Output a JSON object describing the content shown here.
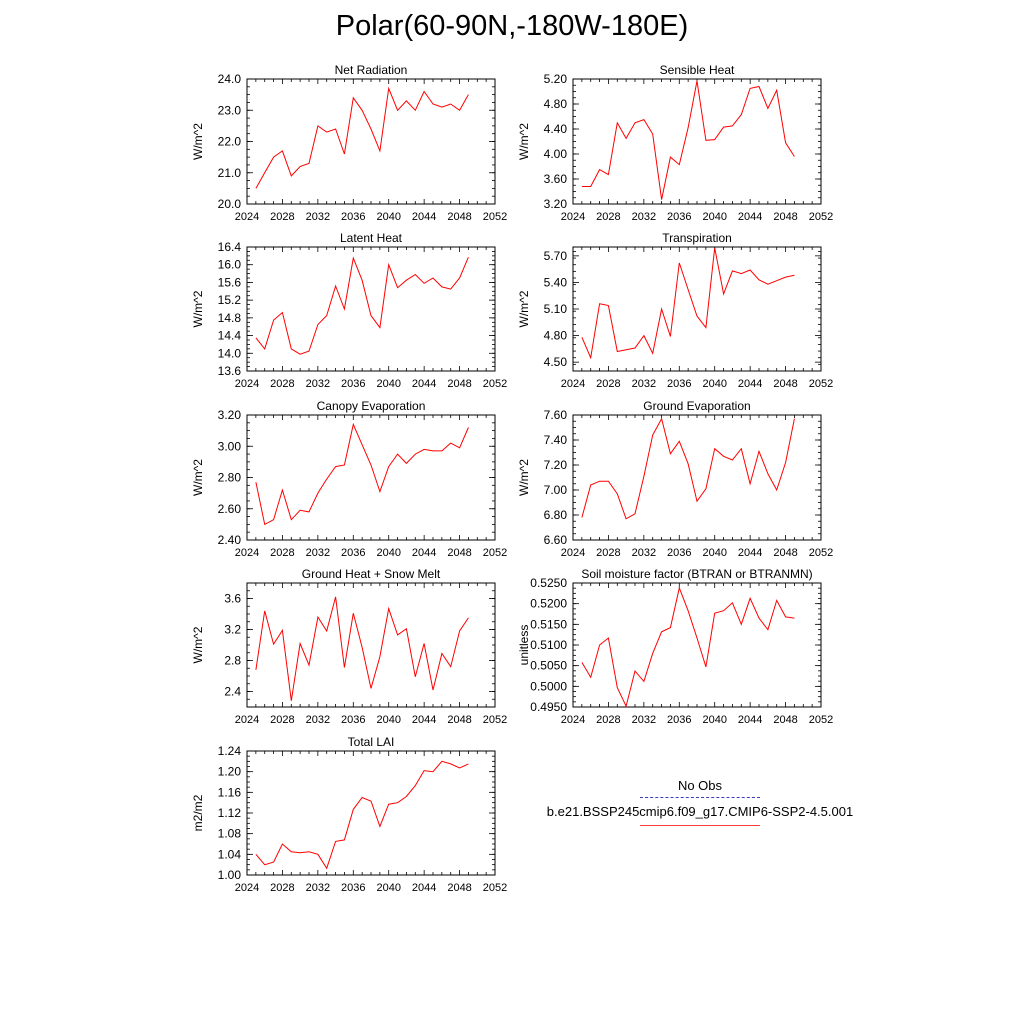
{
  "title": "Polar(60-90N,-180W-180E)",
  "colors": {
    "model_line": "#ff0000",
    "obs_line": "#3b3bbf",
    "axis": "#000000"
  },
  "legend": {
    "obs_label": "No Obs",
    "model_label": "b.e21.BSSP245cmip6.f09_g17.CMIP6-SSP2-4.5.001"
  },
  "chart_data": [
    {
      "type": "line",
      "title": "Net Radiation",
      "ylabel": "W/m^2",
      "xlim": [
        2024,
        2052
      ],
      "xticks": [
        2024,
        2028,
        2032,
        2036,
        2040,
        2044,
        2048,
        2052
      ],
      "ylim": [
        20.0,
        24.0
      ],
      "yticks": [
        "20.0",
        "21.0",
        "22.0",
        "23.0",
        "24.0"
      ],
      "x": [
        2025,
        2026,
        2027,
        2028,
        2029,
        2030,
        2031,
        2032,
        2033,
        2034,
        2035,
        2036,
        2037,
        2038,
        2039,
        2040,
        2041,
        2042,
        2043,
        2044,
        2045,
        2046,
        2047,
        2048,
        2049
      ],
      "series": [
        {
          "values": [
            20.5,
            21.0,
            21.5,
            21.7,
            20.9,
            21.2,
            21.3,
            22.5,
            22.3,
            22.4,
            21.6,
            23.4,
            23.0,
            22.4,
            21.7,
            23.7,
            23.0,
            23.3,
            23.0,
            23.6,
            23.2,
            23.1,
            23.2,
            23.0,
            23.5
          ]
        }
      ]
    },
    {
      "type": "line",
      "title": "Sensible Heat",
      "ylabel": "W/m^2",
      "xlim": [
        2024,
        2052
      ],
      "xticks": [
        2024,
        2028,
        2032,
        2036,
        2040,
        2044,
        2048,
        2052
      ],
      "ylim": [
        3.2,
        5.2
      ],
      "yticks": [
        "3.20",
        "3.60",
        "4.00",
        "4.40",
        "4.80",
        "5.20"
      ],
      "x": [
        2025,
        2026,
        2027,
        2028,
        2029,
        2030,
        2031,
        2032,
        2033,
        2034,
        2035,
        2036,
        2037,
        2038,
        2039,
        2040,
        2041,
        2042,
        2043,
        2044,
        2045,
        2046,
        2047,
        2048,
        2049
      ],
      "series": [
        {
          "values": [
            3.48,
            3.48,
            3.75,
            3.67,
            4.5,
            4.25,
            4.5,
            4.55,
            4.32,
            3.27,
            3.95,
            3.83,
            4.42,
            5.17,
            4.22,
            4.23,
            4.43,
            4.45,
            4.63,
            5.05,
            5.08,
            4.73,
            5.02,
            4.18,
            3.96
          ]
        }
      ]
    },
    {
      "type": "line",
      "title": "Latent Heat",
      "ylabel": "W/m^2",
      "xlim": [
        2024,
        2052
      ],
      "xticks": [
        2024,
        2028,
        2032,
        2036,
        2040,
        2044,
        2048,
        2052
      ],
      "ylim": [
        13.6,
        16.4
      ],
      "yticks": [
        "13.6",
        "14.0",
        "14.4",
        "14.8",
        "15.2",
        "15.6",
        "16.0",
        "16.4"
      ],
      "x": [
        2025,
        2026,
        2027,
        2028,
        2029,
        2030,
        2031,
        2032,
        2033,
        2034,
        2035,
        2036,
        2037,
        2038,
        2039,
        2040,
        2041,
        2042,
        2043,
        2044,
        2045,
        2046,
        2047,
        2048,
        2049
      ],
      "series": [
        {
          "values": [
            14.35,
            14.1,
            14.75,
            14.92,
            14.1,
            13.98,
            14.05,
            14.65,
            14.85,
            15.52,
            15.0,
            16.15,
            15.65,
            14.85,
            14.58,
            16.0,
            15.48,
            15.65,
            15.78,
            15.58,
            15.7,
            15.5,
            15.45,
            15.7,
            16.17
          ]
        }
      ]
    },
    {
      "type": "line",
      "title": "Transpiration",
      "ylabel": "W/m^2",
      "xlim": [
        2024,
        2052
      ],
      "xticks": [
        2024,
        2028,
        2032,
        2036,
        2040,
        2044,
        2048,
        2052
      ],
      "ylim": [
        4.4,
        5.8
      ],
      "yticks": [
        "4.50",
        "4.80",
        "5.10",
        "5.40",
        "5.70"
      ],
      "x": [
        2025,
        2026,
        2027,
        2028,
        2029,
        2030,
        2031,
        2032,
        2033,
        2034,
        2035,
        2036,
        2037,
        2038,
        2039,
        2040,
        2041,
        2042,
        2043,
        2044,
        2045,
        2046,
        2047,
        2048,
        2049
      ],
      "series": [
        {
          "values": [
            4.78,
            4.55,
            5.16,
            5.14,
            4.62,
            4.64,
            4.66,
            4.8,
            4.6,
            5.1,
            4.79,
            5.62,
            5.32,
            5.02,
            4.89,
            5.79,
            5.27,
            5.53,
            5.5,
            5.54,
            5.43,
            5.38,
            5.42,
            5.46,
            5.48
          ]
        }
      ]
    },
    {
      "type": "line",
      "title": "Canopy Evaporation",
      "ylabel": "W/m^2",
      "xlim": [
        2024,
        2052
      ],
      "xticks": [
        2024,
        2028,
        2032,
        2036,
        2040,
        2044,
        2048,
        2052
      ],
      "ylim": [
        2.4,
        3.2
      ],
      "yticks": [
        "2.40",
        "2.60",
        "2.80",
        "3.00",
        "3.20"
      ],
      "x": [
        2025,
        2026,
        2027,
        2028,
        2029,
        2030,
        2031,
        2032,
        2033,
        2034,
        2035,
        2036,
        2037,
        2038,
        2039,
        2040,
        2041,
        2042,
        2043,
        2044,
        2045,
        2046,
        2047,
        2048,
        2049
      ],
      "series": [
        {
          "values": [
            2.77,
            2.5,
            2.53,
            2.72,
            2.53,
            2.59,
            2.58,
            2.7,
            2.79,
            2.87,
            2.88,
            3.14,
            3.01,
            2.88,
            2.71,
            2.87,
            2.95,
            2.89,
            2.95,
            2.98,
            2.97,
            2.97,
            3.02,
            2.99,
            3.12
          ]
        }
      ]
    },
    {
      "type": "line",
      "title": "Ground Evaporation",
      "ylabel": "W/m^2",
      "xlim": [
        2024,
        2052
      ],
      "xticks": [
        2024,
        2028,
        2032,
        2036,
        2040,
        2044,
        2048,
        2052
      ],
      "ylim": [
        6.6,
        7.6
      ],
      "yticks": [
        "6.60",
        "6.80",
        "7.00",
        "7.20",
        "7.40",
        "7.60"
      ],
      "x": [
        2025,
        2026,
        2027,
        2028,
        2029,
        2030,
        2031,
        2032,
        2033,
        2034,
        2035,
        2036,
        2037,
        2038,
        2039,
        2040,
        2041,
        2042,
        2043,
        2044,
        2045,
        2046,
        2047,
        2048,
        2049
      ],
      "series": [
        {
          "values": [
            6.78,
            7.04,
            7.07,
            7.07,
            6.97,
            6.77,
            6.81,
            7.11,
            7.44,
            7.57,
            7.29,
            7.39,
            7.21,
            6.91,
            7.01,
            7.33,
            7.27,
            7.24,
            7.33,
            7.05,
            7.31,
            7.13,
            7.0,
            7.22,
            7.57
          ]
        }
      ]
    },
    {
      "type": "line",
      "title": "Ground Heat + Snow Melt",
      "ylabel": "W/m^2",
      "xlim": [
        2024,
        2052
      ],
      "xticks": [
        2024,
        2028,
        2032,
        2036,
        2040,
        2044,
        2048,
        2052
      ],
      "ylim": [
        2.2,
        3.8
      ],
      "yticks": [
        "2.4",
        "2.8",
        "3.2",
        "3.6"
      ],
      "x": [
        2025,
        2026,
        2027,
        2028,
        2029,
        2030,
        2031,
        2032,
        2033,
        2034,
        2035,
        2036,
        2037,
        2038,
        2039,
        2040,
        2041,
        2042,
        2043,
        2044,
        2045,
        2046,
        2047,
        2048,
        2049
      ],
      "series": [
        {
          "values": [
            2.68,
            3.44,
            3.01,
            3.19,
            2.28,
            3.02,
            2.74,
            3.36,
            3.18,
            3.62,
            2.71,
            3.41,
            2.97,
            2.44,
            2.85,
            3.47,
            3.13,
            3.21,
            2.59,
            3.02,
            2.42,
            2.89,
            2.72,
            3.18,
            3.35
          ]
        }
      ]
    },
    {
      "type": "line",
      "title": "Soil moisture factor (BTRAN or BTRANMN)",
      "ylabel": "unitless",
      "xlim": [
        2024,
        2052
      ],
      "xticks": [
        2024,
        2028,
        2032,
        2036,
        2040,
        2044,
        2048,
        2052
      ],
      "ylim": [
        0.495,
        0.525
      ],
      "yticks": [
        "0.4950",
        "0.5000",
        "0.5050",
        "0.5100",
        "0.5150",
        "0.5200",
        "0.5250"
      ],
      "x": [
        2025,
        2026,
        2027,
        2028,
        2029,
        2030,
        2031,
        2032,
        2033,
        2034,
        2035,
        2036,
        2037,
        2038,
        2039,
        2040,
        2041,
        2042,
        2043,
        2044,
        2045,
        2046,
        2047,
        2048,
        2049
      ],
      "series": [
        {
          "values": [
            0.5058,
            0.5022,
            0.51,
            0.5117,
            0.4997,
            0.4952,
            0.5037,
            0.5012,
            0.508,
            0.5132,
            0.5142,
            0.5238,
            0.5183,
            0.5117,
            0.5047,
            0.5177,
            0.5183,
            0.5202,
            0.515,
            0.5213,
            0.5165,
            0.5137,
            0.5208,
            0.5168,
            0.5165
          ]
        }
      ]
    },
    {
      "type": "line",
      "title": "Total LAI",
      "ylabel": "m2/m2",
      "xlim": [
        2024,
        2052
      ],
      "xticks": [
        2024,
        2028,
        2032,
        2036,
        2040,
        2044,
        2048,
        2052
      ],
      "ylim": [
        1.0,
        1.24
      ],
      "yticks": [
        "1.00",
        "1.04",
        "1.08",
        "1.12",
        "1.16",
        "1.20",
        "1.24"
      ],
      "x": [
        2025,
        2026,
        2027,
        2028,
        2029,
        2030,
        2031,
        2032,
        2033,
        2034,
        2035,
        2036,
        2037,
        2038,
        2039,
        2040,
        2041,
        2042,
        2043,
        2044,
        2045,
        2046,
        2047,
        2048,
        2049
      ],
      "series": [
        {
          "values": [
            1.04,
            1.02,
            1.025,
            1.06,
            1.045,
            1.043,
            1.045,
            1.04,
            1.013,
            1.065,
            1.068,
            1.127,
            1.15,
            1.143,
            1.094,
            1.137,
            1.14,
            1.152,
            1.173,
            1.202,
            1.2,
            1.22,
            1.215,
            1.207,
            1.215
          ]
        }
      ]
    }
  ]
}
